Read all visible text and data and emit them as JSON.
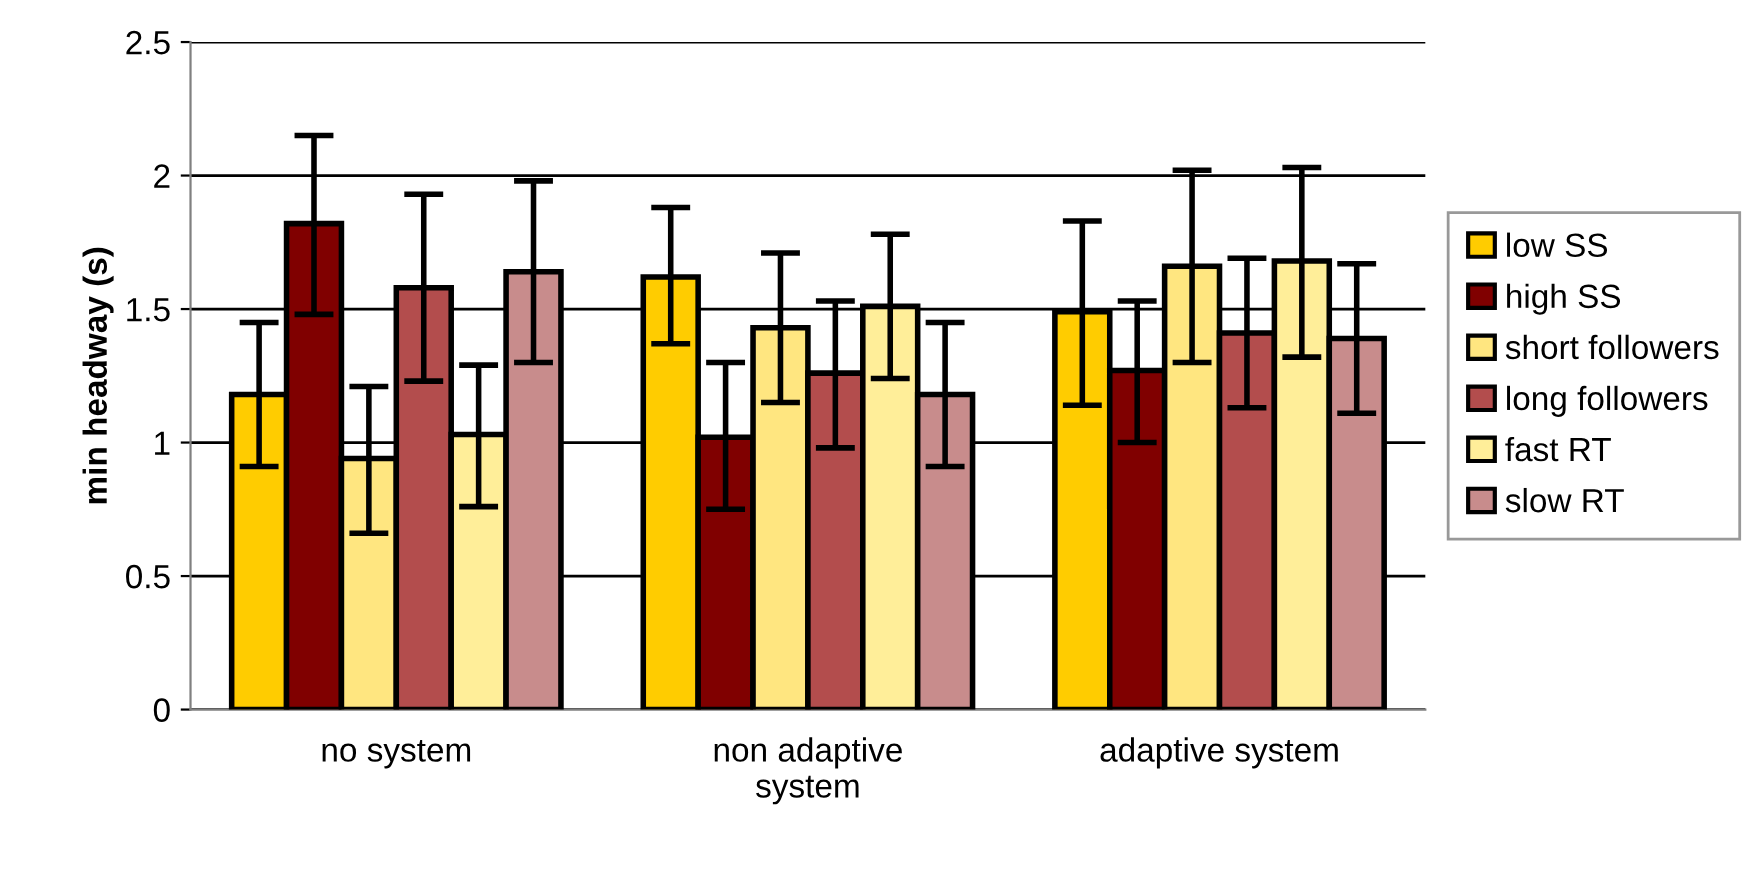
{
  "chart_data": {
    "type": "bar",
    "ylabel": "min headway (s)",
    "categories": [
      "no system",
      "non adaptive\nsystem",
      "adaptive system"
    ],
    "series": [
      {
        "name": "low SS",
        "color": "#ffcc00",
        "values": [
          1.18,
          1.62,
          1.49
        ],
        "errors": [
          [
            0.91,
            1.45
          ],
          [
            1.37,
            1.88
          ],
          [
            1.14,
            1.83
          ]
        ]
      },
      {
        "name": "high SS",
        "color": "#800000",
        "values": [
          1.82,
          1.02,
          1.27
        ],
        "errors": [
          [
            1.48,
            2.15
          ],
          [
            0.75,
            1.3
          ],
          [
            1.0,
            1.53
          ]
        ]
      },
      {
        "name": "short followers",
        "color": "#ffe680",
        "values": [
          0.94,
          1.43,
          1.66
        ],
        "errors": [
          [
            0.66,
            1.21
          ],
          [
            1.15,
            1.71
          ],
          [
            1.3,
            2.02
          ]
        ]
      },
      {
        "name": "long followers",
        "color": "#b34d4d",
        "values": [
          1.58,
          1.26,
          1.41
        ],
        "errors": [
          [
            1.23,
            1.93
          ],
          [
            0.98,
            1.53
          ],
          [
            1.13,
            1.69
          ]
        ]
      },
      {
        "name": "fast RT",
        "color": "#ffee99",
        "values": [
          1.03,
          1.51,
          1.68
        ],
        "errors": [
          [
            0.76,
            1.29
          ],
          [
            1.24,
            1.78
          ],
          [
            1.32,
            2.03
          ]
        ]
      },
      {
        "name": "slow RT",
        "color": "#c88c8c",
        "values": [
          1.64,
          1.18,
          1.39
        ],
        "errors": [
          [
            1.3,
            1.98
          ],
          [
            0.91,
            1.45
          ],
          [
            1.11,
            1.67
          ]
        ]
      }
    ],
    "ylim": [
      0,
      2.5
    ],
    "yticks": [
      0,
      0.5,
      1,
      1.5,
      2,
      2.5
    ],
    "grid": "y",
    "legend": "right"
  }
}
